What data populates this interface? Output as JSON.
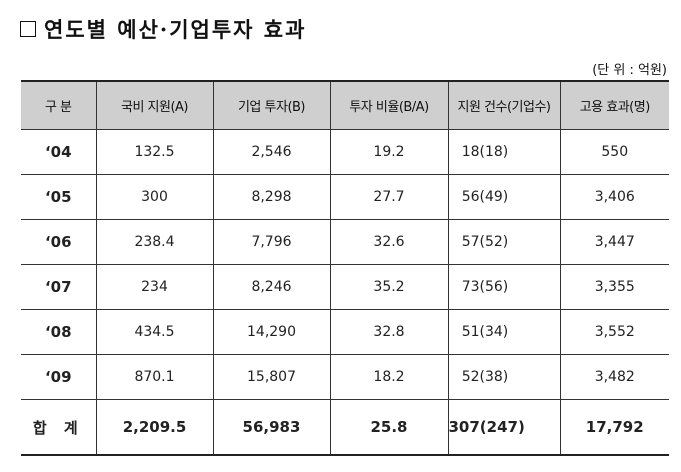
{
  "title": "연도별 예산·기업투자 효과",
  "unit": "(단 위 : 억원)",
  "headers": [
    "구 분",
    "국비 지원(A)",
    "기업 투자(B)",
    "투자 비율(B/A)",
    "지원 건수(기업수)",
    "고용 효과(명)"
  ],
  "rows": [
    {
      "year": "‘04",
      "gov": "132.5",
      "corp": "2,546",
      "ratio": "19.2",
      "cases": "18(18)",
      "jobs": "550"
    },
    {
      "year": "‘05",
      "gov": "300",
      "corp": "8,298",
      "ratio": "27.7",
      "cases": "56(49)",
      "jobs": "3,406"
    },
    {
      "year": "‘06",
      "gov": "238.4",
      "corp": "7,796",
      "ratio": "32.6",
      "cases": "57(52)",
      "jobs": "3,447"
    },
    {
      "year": "‘07",
      "gov": "234",
      "corp": "8,246",
      "ratio": "35.2",
      "cases": "73(56)",
      "jobs": "3,355"
    },
    {
      "year": "‘08",
      "gov": "434.5",
      "corp": "14,290",
      "ratio": "32.8",
      "cases": "51(34)",
      "jobs": "3,552"
    },
    {
      "year": "‘09",
      "gov": "870.1",
      "corp": "15,807",
      "ratio": "18.2",
      "cases": "52(38)",
      "jobs": "3,482"
    }
  ],
  "total": {
    "year": "합 계",
    "gov": "2,209.5",
    "corp": "56,983",
    "ratio": "25.8",
    "cases": "307(247)",
    "jobs": "17,792"
  }
}
